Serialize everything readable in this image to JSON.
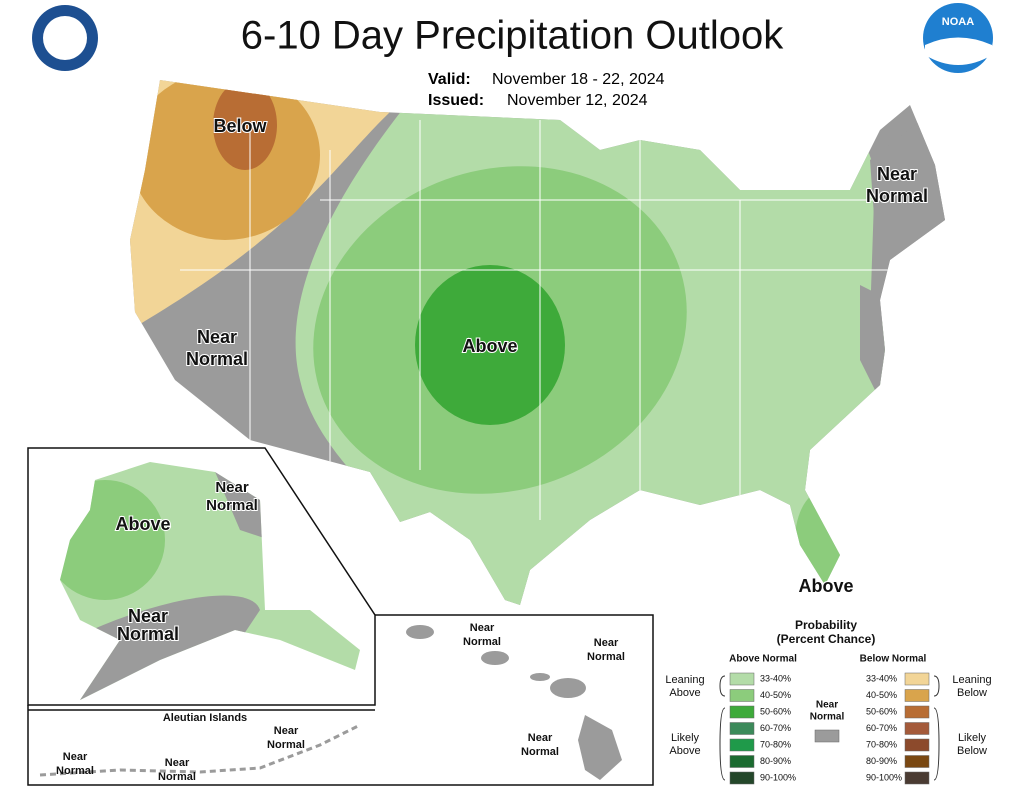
{
  "header": {
    "title": "6-10 Day Precipitation Outlook",
    "valid_label": "Valid:",
    "valid": "November 18 - 22, 2024",
    "issued_label": "Issued:",
    "issued": "November 12, 2024",
    "logo": "NOAA"
  },
  "map_labels": {
    "below_nw": [
      "Below"
    ],
    "near_normal_ne": [
      "Near",
      "Normal"
    ],
    "near_normal_w": [
      "Near",
      "Normal"
    ],
    "above_central": [
      "Above"
    ],
    "above_fl": [
      "Above"
    ],
    "ak_above": [
      "Above"
    ],
    "ak_near_normal_n": [
      "Near",
      "Normal"
    ],
    "ak_near_normal_s": [
      "Near",
      "Normal"
    ],
    "hi_near_normal_1": [
      "Near",
      "Normal"
    ],
    "hi_near_normal_2": [
      "Near",
      "Normal"
    ],
    "hi_near_normal_3": [
      "Near",
      "Normal"
    ],
    "aleutian_title": [
      "Aleutian Islands"
    ],
    "al_near_normal_1": [
      "Near",
      "Normal"
    ],
    "al_near_normal_2": [
      "Near",
      "Normal"
    ],
    "al_near_normal_3": [
      "Near",
      "Normal"
    ]
  },
  "legend": {
    "title": [
      "Probability",
      "(Percent Chance)"
    ],
    "above": {
      "heading": "Above Normal",
      "levels": [
        {
          "label": "33-40%",
          "color": "#b3dca8"
        },
        {
          "label": "40-50%",
          "color": "#8ccc7c"
        },
        {
          "label": "50-60%",
          "color": "#3eaa3a"
        },
        {
          "label": "60-70%",
          "color": "#3c8a5a"
        },
        {
          "label": "70-80%",
          "color": "#1f9a4a"
        },
        {
          "label": "80-90%",
          "color": "#1b6b30"
        },
        {
          "label": "90-100%",
          "color": "#24472a"
        }
      ]
    },
    "below": {
      "heading": "Below Normal",
      "levels": [
        {
          "label": "33-40%",
          "color": "#f2d597"
        },
        {
          "label": "40-50%",
          "color": "#d9a44c"
        },
        {
          "label": "50-60%",
          "color": "#b86d34"
        },
        {
          "label": "60-70%",
          "color": "#a45a3a"
        },
        {
          "label": "70-80%",
          "color": "#8c4a2c"
        },
        {
          "label": "80-90%",
          "color": "#7a4812"
        },
        {
          "label": "90-100%",
          "color": "#4a3b32"
        }
      ]
    },
    "near": {
      "label": [
        "Near",
        "Normal"
      ],
      "color": "#9b9b9b"
    },
    "groups": {
      "leaning_above": [
        "Leaning",
        "Above"
      ],
      "likely_above": [
        "Likely",
        "Above"
      ],
      "leaning_below": [
        "Leaning",
        "Below"
      ],
      "likely_below": [
        "Likely",
        "Below"
      ]
    }
  }
}
